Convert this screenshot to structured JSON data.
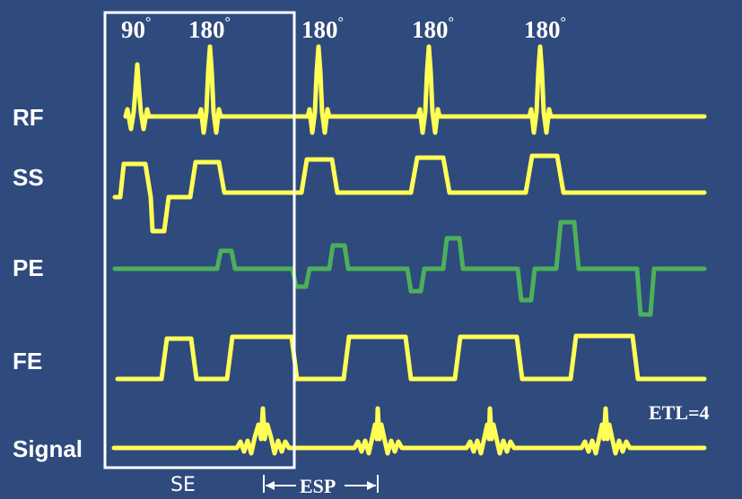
{
  "rows": {
    "rf": "RF",
    "ss": "SS",
    "pe": "PE",
    "fe": "FE",
    "signal": "Signal"
  },
  "pulses": [
    {
      "angle": "90",
      "unit": "°"
    },
    {
      "angle": "180",
      "unit": "°"
    },
    {
      "angle": "180",
      "unit": "°"
    },
    {
      "angle": "180",
      "unit": "°"
    },
    {
      "angle": "180",
      "unit": "°"
    }
  ],
  "annotations": {
    "se": "SE",
    "esp": "ESP",
    "etl": "ETL=4"
  },
  "colors": {
    "background": "#2f4a7d",
    "trace": "#ffff55",
    "phase_encode": "#4cb05a",
    "text": "#ffffff"
  }
}
